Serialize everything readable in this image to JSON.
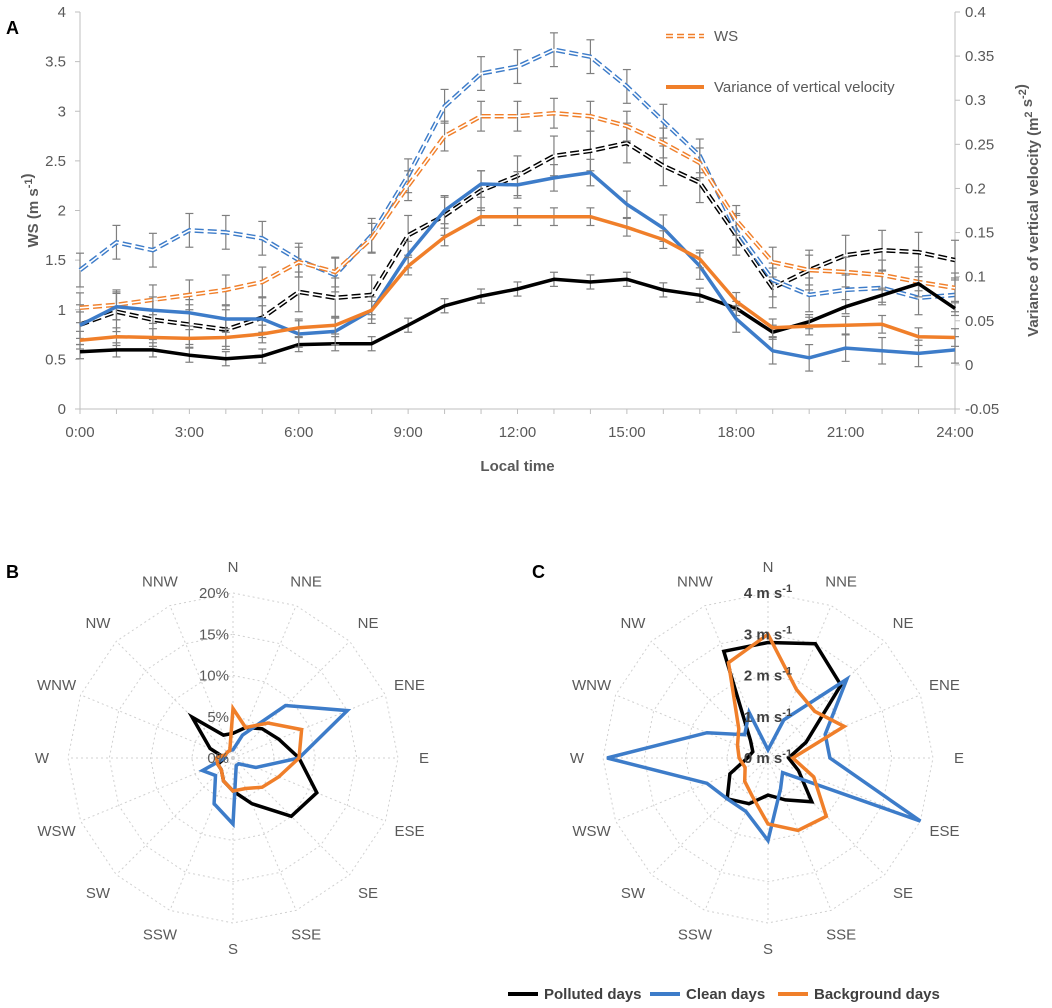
{
  "panel_labels": {
    "a": "A",
    "b": "B",
    "c": "C"
  },
  "colors": {
    "polluted": "#000000",
    "clean": "#3d7cc9",
    "background": "#f07f2a",
    "axis": "#bfbfbf",
    "text": "#595959",
    "errorbar": "#7f7f7f"
  },
  "chart_data": [
    {
      "id": "A",
      "type": "line",
      "xlabel": "Local time",
      "ylabel_left": "WS (m s⁻¹)",
      "ylabel_right": "Variance of vertical velocity (m² s⁻²)",
      "x": [
        0,
        1,
        2,
        3,
        4,
        5,
        6,
        7,
        8,
        9,
        10,
        11,
        12,
        13,
        14,
        15,
        16,
        17,
        18,
        19,
        20,
        21,
        22,
        23,
        24
      ],
      "x_tick_values": [
        0,
        3,
        6,
        9,
        12,
        15,
        18,
        21,
        24
      ],
      "x_tick_labels": [
        "0:00",
        "3:00",
        "6:00",
        "9:00",
        "12:00",
        "15:00",
        "18:00",
        "21:00",
        "24:00"
      ],
      "ylim_left": [
        0,
        4
      ],
      "y_left_ticks": [
        "0",
        "0.5",
        "1",
        "1.5",
        "2",
        "2.5",
        "3",
        "3.5",
        "4"
      ],
      "ylim_right": [
        -0.05,
        0.4
      ],
      "y_right_ticks": [
        "-0.05",
        "0",
        "0.05",
        "0.1",
        "0.15",
        "0.2",
        "0.25",
        "0.3",
        "0.35",
        "0.4"
      ],
      "legend": [
        {
          "label": "WS",
          "style": "dashed"
        },
        {
          "label": "Variance of vertical velocity",
          "style": "solid"
        }
      ],
      "series": [
        {
          "name": "WS - Polluted days",
          "group": "polluted",
          "style": "dashed",
          "axis": "left",
          "values": [
            0.85,
            0.98,
            0.9,
            0.85,
            0.8,
            0.92,
            1.18,
            1.12,
            1.15,
            1.75,
            1.95,
            2.2,
            2.35,
            2.55,
            2.6,
            2.68,
            2.45,
            2.28,
            1.75,
            1.22,
            1.4,
            1.55,
            1.6,
            1.58,
            1.5
          ],
          "errors": [
            0.2,
            0.2,
            0.2,
            0.2,
            0.2,
            0.2,
            0.2,
            0.2,
            0.2,
            0.2,
            0.2,
            0.2,
            0.2,
            0.2,
            0.2,
            0.2,
            0.2,
            0.2,
            0.2,
            0.2,
            0.2,
            0.2,
            0.2,
            0.2,
            0.2
          ]
        },
        {
          "name": "WS - Clean days",
          "group": "clean",
          "style": "dashed",
          "axis": "left",
          "values": [
            1.4,
            1.68,
            1.6,
            1.8,
            1.78,
            1.72,
            1.5,
            1.35,
            1.75,
            2.35,
            3.05,
            3.38,
            3.45,
            3.62,
            3.55,
            3.25,
            2.9,
            2.55,
            1.8,
            1.3,
            1.15,
            1.2,
            1.22,
            1.12,
            1.15
          ],
          "errors": [
            0.17,
            0.17,
            0.17,
            0.17,
            0.17,
            0.17,
            0.17,
            0.17,
            0.17,
            0.17,
            0.17,
            0.17,
            0.17,
            0.17,
            0.17,
            0.17,
            0.17,
            0.17,
            0.17,
            0.17,
            0.17,
            0.17,
            0.17,
            0.17,
            0.17
          ]
        },
        {
          "name": "WS - Background days",
          "group": "background",
          "style": "dashed",
          "axis": "left",
          "values": [
            1.02,
            1.05,
            1.1,
            1.15,
            1.2,
            1.28,
            1.48,
            1.38,
            1.72,
            2.25,
            2.75,
            2.95,
            2.95,
            2.98,
            2.95,
            2.85,
            2.68,
            2.48,
            1.9,
            1.48,
            1.4,
            1.38,
            1.35,
            1.28,
            1.22
          ],
          "errors": [
            0.15,
            0.15,
            0.15,
            0.15,
            0.15,
            0.15,
            0.15,
            0.15,
            0.15,
            0.15,
            0.15,
            0.15,
            0.15,
            0.15,
            0.15,
            0.15,
            0.15,
            0.15,
            0.15,
            0.15,
            0.15,
            0.15,
            0.15,
            0.15,
            0.15
          ]
        },
        {
          "name": "Variance - Polluted days",
          "group": "polluted",
          "style": "solid",
          "axis": "right",
          "values": [
            0.015,
            0.017,
            0.017,
            0.011,
            0.007,
            0.01,
            0.023,
            0.024,
            0.024,
            0.045,
            0.067,
            0.078,
            0.086,
            0.097,
            0.094,
            0.097,
            0.085,
            0.079,
            0.064,
            0.037,
            0.049,
            0.066,
            0.079,
            0.092,
            0.064
          ],
          "errors": [
            0.008,
            0.008,
            0.008,
            0.008,
            0.008,
            0.008,
            0.008,
            0.008,
            0.008,
            0.008,
            0.008,
            0.008,
            0.008,
            0.008,
            0.008,
            0.008,
            0.008,
            0.008,
            0.008,
            0.008,
            0.008,
            0.008,
            0.008,
            0.008,
            0.008
          ]
        },
        {
          "name": "Variance - Clean days",
          "group": "clean",
          "style": "solid",
          "axis": "right",
          "values": [
            0.045,
            0.066,
            0.062,
            0.059,
            0.052,
            0.052,
            0.035,
            0.038,
            0.062,
            0.125,
            0.175,
            0.205,
            0.204,
            0.212,
            0.218,
            0.182,
            0.155,
            0.112,
            0.052,
            0.016,
            0.008,
            0.019,
            0.016,
            0.013,
            0.017
          ],
          "errors": [
            0.015,
            0.015,
            0.015,
            0.015,
            0.015,
            0.015,
            0.015,
            0.015,
            0.015,
            0.015,
            0.015,
            0.015,
            0.015,
            0.015,
            0.015,
            0.015,
            0.015,
            0.015,
            0.015,
            0.015,
            0.015,
            0.015,
            0.015,
            0.015,
            0.015
          ]
        },
        {
          "name": "Variance - Background days",
          "group": "background",
          "style": "solid",
          "axis": "right",
          "values": [
            0.028,
            0.032,
            0.031,
            0.03,
            0.031,
            0.035,
            0.042,
            0.045,
            0.062,
            0.112,
            0.145,
            0.168,
            0.168,
            0.168,
            0.168,
            0.156,
            0.142,
            0.12,
            0.072,
            0.042,
            0.044,
            0.045,
            0.046,
            0.032,
            0.031
          ],
          "errors": [
            0.01,
            0.01,
            0.01,
            0.01,
            0.01,
            0.01,
            0.01,
            0.01,
            0.01,
            0.01,
            0.01,
            0.01,
            0.01,
            0.01,
            0.01,
            0.01,
            0.01,
            0.01,
            0.01,
            0.01,
            0.01,
            0.01,
            0.01,
            0.01,
            0.01
          ]
        }
      ]
    },
    {
      "id": "B",
      "type": "radar",
      "directions": [
        "N",
        "NNE",
        "NE",
        "ENE",
        "E",
        "ESE",
        "SE",
        "SSE",
        "S",
        "SSW",
        "SW",
        "WSW",
        "W",
        "WNW",
        "NW",
        "NNW"
      ],
      "rmax": 20,
      "ring_labels": [
        "0%",
        "5%",
        "10%",
        "15%",
        "20%"
      ],
      "series": [
        {
          "name": "Polluted days",
          "group": "polluted",
          "values": [
            3,
            4,
            5,
            6,
            8,
            11,
            10,
            6,
            4,
            3,
            2,
            2,
            1,
            3,
            7,
            3
          ]
        },
        {
          "name": "Clean days",
          "group": "clean",
          "values": [
            1,
            3,
            9,
            15,
            8,
            3,
            1,
            1,
            8,
            6,
            3,
            4,
            1,
            1,
            1,
            1
          ]
        },
        {
          "name": "Background days",
          "group": "background",
          "values": [
            6,
            4,
            6,
            9,
            8,
            6,
            5,
            4,
            4,
            3,
            2,
            2,
            2,
            1,
            1,
            1
          ]
        }
      ]
    },
    {
      "id": "C",
      "type": "radar",
      "directions": [
        "N",
        "NNE",
        "NE",
        "ENE",
        "E",
        "ESE",
        "SE",
        "SSE",
        "S",
        "SSW",
        "SW",
        "WSW",
        "W",
        "WNW",
        "NW",
        "NNW"
      ],
      "rmax": 4,
      "ring_labels": [
        "0 m s⁻¹",
        "1 m s⁻¹",
        "2 m s⁻¹",
        "3 m s⁻¹",
        "4 m s⁻¹"
      ],
      "series": [
        {
          "name": "Polluted days",
          "group": "polluted",
          "values": [
            2.8,
            3.0,
            2.5,
            1.0,
            0.5,
            0.8,
            1.5,
            1.1,
            0.9,
            1.2,
            1.4,
            1.0,
            0.5,
            0.4,
            0.6,
            2.8
          ]
        },
        {
          "name": "Clean days",
          "group": "clean",
          "values": [
            0.2,
            1.0,
            2.7,
            1.5,
            1.5,
            4.0,
            0.5,
            0.8,
            2.0,
            1.4,
            1.4,
            1.6,
            3.9,
            1.6,
            0.8,
            1.2
          ]
        },
        {
          "name": "Background days",
          "group": "background",
          "values": [
            3.0,
            1.8,
            1.6,
            2.0,
            0.6,
            1.2,
            2.0,
            1.9,
            1.6,
            1.0,
            0.8,
            0.6,
            0.7,
            0.8,
            1.0,
            2.5
          ]
        }
      ],
      "legend": [
        "Polluted days",
        "Clean days",
        "Background days"
      ]
    }
  ]
}
